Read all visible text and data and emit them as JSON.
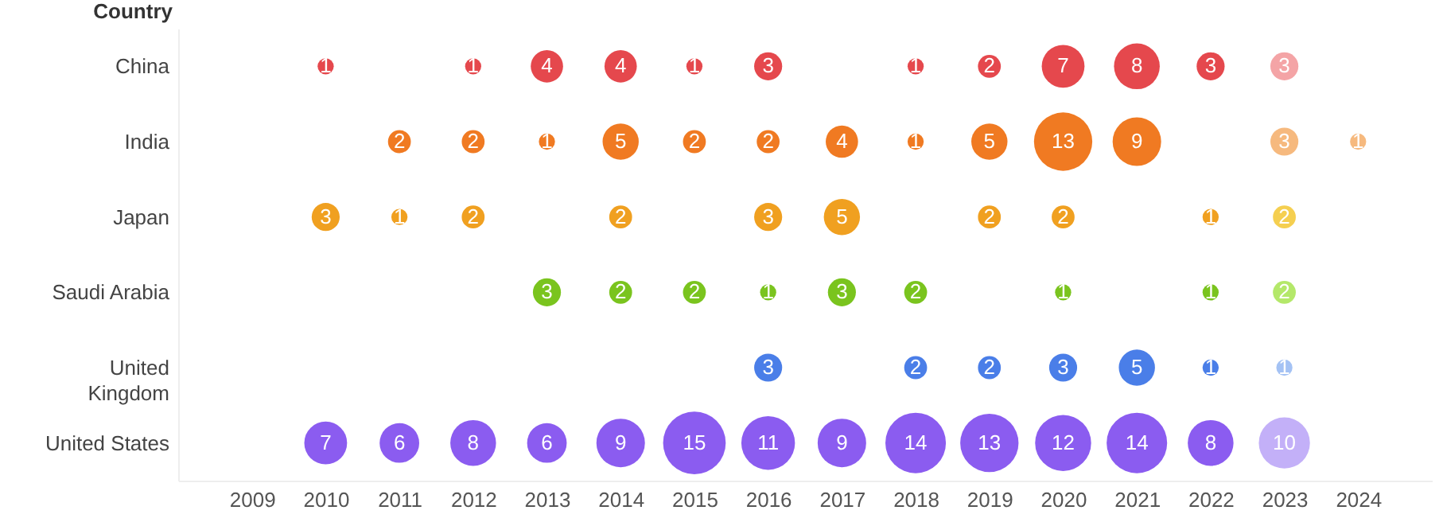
{
  "chart_data": {
    "type": "heatmap",
    "ylabel": "Country",
    "data_labels": true,
    "categories": [
      "2009",
      "2010",
      "2011",
      "2012",
      "2013",
      "2014",
      "2015",
      "2016",
      "2017",
      "2018",
      "2019",
      "2020",
      "2021",
      "2022",
      "2023",
      "2024"
    ],
    "y_categories": [
      "China",
      "India",
      "Japan",
      "Saudi Arabia",
      "United Kingdom",
      "United States"
    ],
    "cells": [
      [
        null,
        1,
        null,
        1,
        4,
        4,
        1,
        3,
        null,
        1,
        2,
        7,
        8,
        3,
        3,
        null
      ],
      [
        null,
        null,
        2,
        2,
        1,
        5,
        2,
        2,
        4,
        1,
        5,
        13,
        9,
        null,
        3,
        1
      ],
      [
        null,
        3,
        1,
        2,
        null,
        2,
        null,
        3,
        5,
        null,
        2,
        2,
        null,
        1,
        2,
        null
      ],
      [
        null,
        null,
        null,
        null,
        3,
        2,
        2,
        1,
        3,
        2,
        null,
        1,
        null,
        1,
        2,
        null
      ],
      [
        null,
        null,
        null,
        null,
        null,
        null,
        null,
        3,
        null,
        2,
        2,
        3,
        5,
        1,
        1,
        null
      ],
      [
        null,
        7,
        6,
        8,
        6,
        9,
        15,
        11,
        9,
        14,
        13,
        12,
        14,
        8,
        10,
        null
      ]
    ],
    "colors": [
      [
        null,
        "#e5484d",
        null,
        "#e5484d",
        "#e5484d",
        "#e5484d",
        "#e5484d",
        "#e5484d",
        null,
        "#e5484d",
        "#e5484d",
        "#e5484d",
        "#e5484d",
        "#e5484d",
        "#f4a4a6",
        null
      ],
      [
        null,
        null,
        "#f07a22",
        "#f07a22",
        "#f07a22",
        "#f07a22",
        "#f07a22",
        "#f07a22",
        "#f07a22",
        "#f07a22",
        "#f07a22",
        "#f07a22",
        "#f07a22",
        null,
        "#f6b97e",
        "#f6b97e"
      ],
      [
        null,
        "#f0a020",
        "#f0a020",
        "#f0a020",
        null,
        "#f0a020",
        null,
        "#f0a020",
        "#f0a020",
        null,
        "#f0a020",
        "#f0a020",
        null,
        "#f0a020",
        "#f5cf50",
        null
      ],
      [
        null,
        null,
        null,
        null,
        "#7ac41e",
        "#7ac41e",
        "#7ac41e",
        "#7ac41e",
        "#7ac41e",
        "#7ac41e",
        null,
        "#7ac41e",
        null,
        "#7ac41e",
        "#b4e86a",
        null
      ],
      [
        null,
        null,
        null,
        null,
        null,
        null,
        null,
        "#4a7ee8",
        null,
        "#4a7ee8",
        "#4a7ee8",
        "#4a7ee8",
        "#4a7ee8",
        "#4a7ee8",
        "#a4c2f4",
        null
      ],
      [
        null,
        "#8b5cf0",
        "#8b5cf0",
        "#8b5cf0",
        "#8b5cf0",
        "#8b5cf0",
        "#8b5cf0",
        "#8b5cf0",
        "#8b5cf0",
        "#8b5cf0",
        "#8b5cf0",
        "#8b5cf0",
        "#8b5cf0",
        "#8b5cf0",
        "#c3b0f8",
        null
      ]
    ]
  }
}
